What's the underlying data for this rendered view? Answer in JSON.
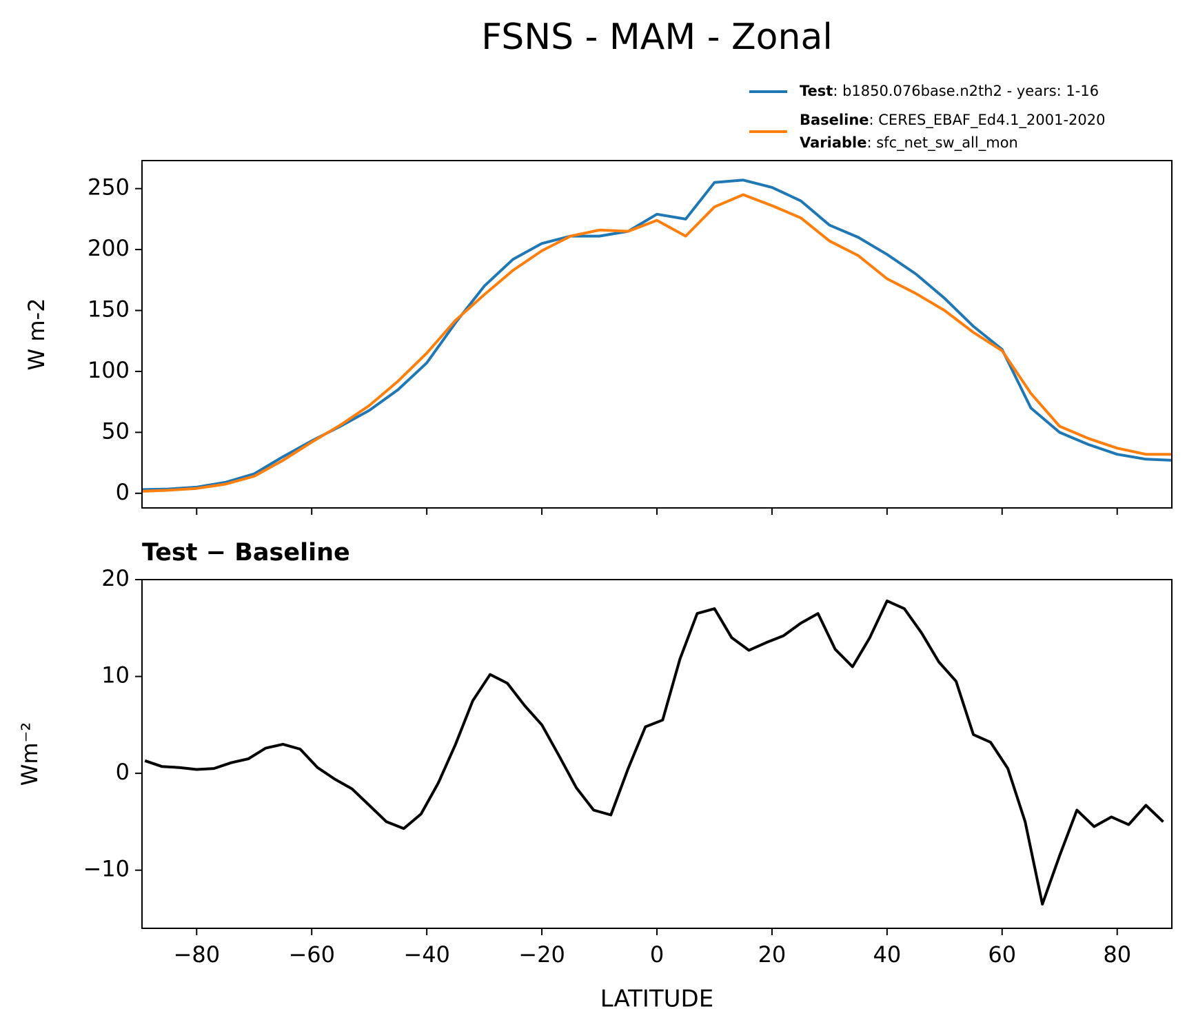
{
  "title": "FSNS - MAM - Zonal",
  "chart_data": [
    {
      "type": "line",
      "ylabel": "W m-2",
      "x": [
        -90,
        -85,
        -80,
        -75,
        -70,
        -65,
        -60,
        -55,
        -50,
        -45,
        -40,
        -35,
        -30,
        -25,
        -20,
        -15,
        -10,
        -5,
        0,
        5,
        10,
        15,
        20,
        25,
        30,
        35,
        40,
        45,
        50,
        55,
        60,
        65,
        70,
        75,
        80,
        85,
        90
      ],
      "series": [
        {
          "name": "Test",
          "description": ": b1850.076base.n2th2 - years: 1-16",
          "color": "#1f77b4",
          "values": [
            3,
            3.5,
            5,
            9,
            16,
            30,
            43,
            55,
            68,
            85,
            107,
            140,
            170,
            192,
            205,
            211,
            211,
            215,
            229,
            225,
            255,
            257,
            251,
            240,
            220,
            210,
            196,
            180,
            160,
            137,
            118,
            70,
            50,
            40,
            32,
            28,
            27
          ]
        },
        {
          "name": "Baseline",
          "description": ": CERES_EBAF_Ed4.1_2001-2020",
          "color": "#ff7f0e",
          "values": [
            1.5,
            2.5,
            4,
            7.5,
            14,
            27,
            42,
            56,
            72,
            92,
            115,
            142,
            163,
            183,
            199,
            211,
            216,
            215,
            224,
            211,
            235,
            245,
            236,
            226,
            207,
            195,
            176,
            164,
            150,
            132,
            117,
            82,
            55,
            45,
            37,
            32,
            32
          ]
        }
      ],
      "variable_label": "Variable",
      "variable": ": sfc_net_sw_all_mon",
      "xlim": [
        -89.5,
        89.5
      ],
      "xticks": [
        -80,
        -60,
        -40,
        -20,
        0,
        20,
        40,
        60,
        80
      ],
      "ylim": [
        -12,
        273
      ],
      "yticks": [
        0,
        50,
        100,
        150,
        200,
        250
      ]
    },
    {
      "type": "line",
      "title": "Test − Baseline",
      "ylabel": "Wm⁻²",
      "xlabel": "LATITUDE",
      "color": "#000000",
      "x": [
        -89,
        -86,
        -83,
        -80,
        -77,
        -74,
        -71,
        -68,
        -65,
        -62,
        -59,
        -56,
        -53,
        -50,
        -47,
        -44,
        -41,
        -38,
        -35,
        -32,
        -29,
        -26,
        -23,
        -20,
        -17,
        -14,
        -11,
        -8,
        -5,
        -2,
        1,
        4,
        7,
        10,
        13,
        16,
        19,
        22,
        25,
        28,
        31,
        34,
        37,
        40,
        43,
        46,
        49,
        52,
        55,
        58,
        61,
        64,
        67,
        70,
        73,
        76,
        79,
        82,
        85,
        88
      ],
      "values": [
        1.3,
        0.7,
        0.6,
        0.4,
        0.5,
        1.1,
        1.5,
        2.6,
        3.0,
        2.5,
        0.6,
        -0.6,
        -1.6,
        -3.3,
        -5.0,
        -5.7,
        -4.2,
        -1.0,
        3.0,
        7.5,
        10.2,
        9.3,
        7.0,
        5.0,
        1.8,
        -1.5,
        -3.8,
        -4.3,
        0.5,
        4.8,
        5.5,
        11.8,
        16.5,
        17.0,
        14.0,
        12.7,
        13.5,
        14.2,
        15.5,
        16.5,
        12.8,
        11.0,
        14.0,
        17.8,
        17.0,
        14.5,
        11.5,
        9.5,
        4.0,
        3.2,
        0.5,
        -5.0,
        -13.5,
        -8.5,
        -3.8,
        -5.5,
        -4.5,
        -5.3,
        -3.3,
        -5.0
      ],
      "xlim": [
        -89.5,
        89.5
      ],
      "xticks": [
        {
          "value": -80,
          "label": "−80"
        },
        {
          "value": -60,
          "label": "−60"
        },
        {
          "value": -40,
          "label": "−40"
        },
        {
          "value": -20,
          "label": "−20"
        },
        0,
        20,
        40,
        60,
        80
      ],
      "ylim": [
        -16,
        20
      ],
      "yticks": [
        {
          "value": -10,
          "label": "−10"
        },
        0,
        10,
        20
      ]
    }
  ]
}
